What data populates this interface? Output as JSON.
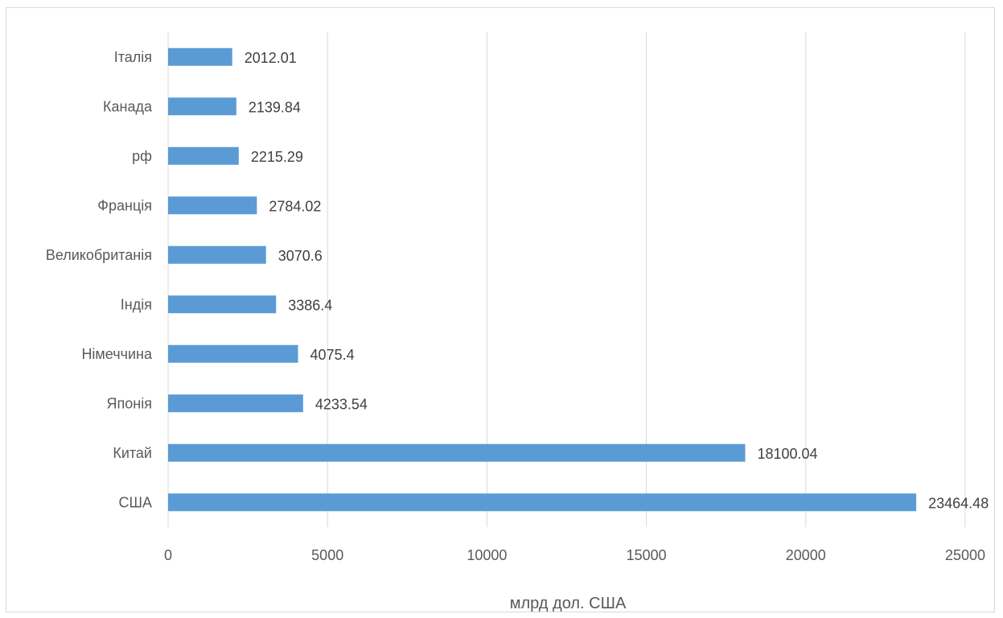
{
  "chart_data": {
    "type": "bar",
    "orientation": "horizontal",
    "categories": [
      "Італія",
      "Канада",
      "рф",
      "Франція",
      "Великобританія",
      "Індія",
      "Німеччина",
      "Японія",
      "Китай",
      "США"
    ],
    "values": [
      2012.01,
      2139.84,
      2215.29,
      2784.02,
      3070.6,
      3386.4,
      4075.4,
      4233.54,
      18100.04,
      23464.48
    ],
    "value_labels": [
      "2012.01",
      "2139.84",
      "2215.29",
      "2784.02",
      "3070.6",
      "3386.4",
      "4075.4",
      "4233.54",
      "18100.04",
      "23464.48"
    ],
    "xlabel": "млрд дол. США",
    "ylabel": "",
    "xlim": [
      0,
      25000
    ],
    "xticks": [
      "0",
      "5000",
      "10000",
      "15000",
      "20000",
      "25000"
    ],
    "grid": "vertical",
    "legend": "none",
    "bar_color": "#5b9bd5",
    "grid_color": "#d9d9d9"
  }
}
